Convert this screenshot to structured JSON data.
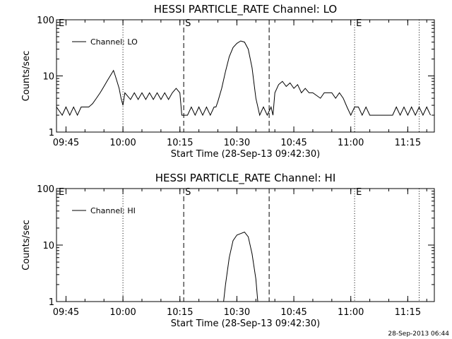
{
  "footer": {
    "stamp": "28-Sep-2013 06:44"
  },
  "chart_data": [
    {
      "type": "line",
      "title": "HESSI PARTICLE_RATE Channel: LO",
      "xlabel": "Start Time (28-Sep-13 09:42:30)",
      "ylabel": "Counts/sec",
      "yscale": "log",
      "ylim": [
        1,
        100
      ],
      "xlim": [
        "09:42:30",
        "11:22:00"
      ],
      "x_ticks": [
        "09:45",
        "10:00",
        "10:15",
        "10:30",
        "10:45",
        "11:00",
        "11:15"
      ],
      "y_ticks": [
        "1",
        "10",
        "100"
      ],
      "legend": "top-left",
      "series": [
        {
          "name": "Channel: LO",
          "points": [
            [
              "09:42:30",
              2.8
            ],
            [
              "09:44:00",
              2.0
            ],
            [
              "09:45:00",
              2.8
            ],
            [
              "09:46:00",
              2.0
            ],
            [
              "09:47:00",
              2.8
            ],
            [
              "09:48:00",
              2.0
            ],
            [
              "09:49:00",
              2.8
            ],
            [
              "09:50:00",
              2.8
            ],
            [
              "09:51:00",
              2.8
            ],
            [
              "09:52:00",
              3.2
            ],
            [
              "09:53:00",
              4.0
            ],
            [
              "09:54:00",
              5.0
            ],
            [
              "09:55:00",
              6.5
            ],
            [
              "09:56:00",
              8.5
            ],
            [
              "09:57:00",
              11.0
            ],
            [
              "09:57:30",
              12.5
            ],
            [
              "09:58:00",
              10.0
            ],
            [
              "09:59:00",
              6.0
            ],
            [
              "09:59:30",
              4.0
            ],
            [
              "10:00:00",
              3.0
            ],
            [
              "10:00:30",
              5.0
            ],
            [
              "10:02:00",
              3.8
            ],
            [
              "10:03:00",
              5.0
            ],
            [
              "10:04:00",
              3.8
            ],
            [
              "10:05:00",
              5.0
            ],
            [
              "10:06:00",
              3.8
            ],
            [
              "10:07:00",
              5.0
            ],
            [
              "10:08:00",
              3.8
            ],
            [
              "10:09:00",
              5.0
            ],
            [
              "10:10:00",
              3.8
            ],
            [
              "10:11:00",
              5.0
            ],
            [
              "10:12:00",
              3.8
            ],
            [
              "10:13:00",
              5.0
            ],
            [
              "10:14:00",
              6.0
            ],
            [
              "10:15:00",
              5.0
            ],
            [
              "10:15:30",
              2.0
            ],
            [
              "10:17:00",
              2.0
            ],
            [
              "10:18:00",
              2.8
            ],
            [
              "10:19:00",
              2.0
            ],
            [
              "10:20:00",
              2.8
            ],
            [
              "10:21:00",
              2.0
            ],
            [
              "10:22:00",
              2.8
            ],
            [
              "10:23:00",
              2.0
            ],
            [
              "10:24:00",
              2.8
            ],
            [
              "10:24:30",
              2.8
            ],
            [
              "10:25:00",
              3.5
            ],
            [
              "10:26:00",
              6.0
            ],
            [
              "10:27:00",
              12.0
            ],
            [
              "10:28:00",
              22.0
            ],
            [
              "10:29:00",
              32.0
            ],
            [
              "10:30:00",
              38.0
            ],
            [
              "10:31:00",
              42.0
            ],
            [
              "10:32:00",
              40.0
            ],
            [
              "10:33:00",
              30.0
            ],
            [
              "10:34:00",
              14.0
            ],
            [
              "10:35:00",
              4.0
            ],
            [
              "10:36:00",
              2.0
            ],
            [
              "10:37:00",
              2.8
            ],
            [
              "10:38:00",
              2.0
            ],
            [
              "10:39:00",
              2.8
            ],
            [
              "10:39:30",
              2.0
            ],
            [
              "10:40:00",
              5.0
            ],
            [
              "10:41:00",
              7.0
            ],
            [
              "10:42:00",
              8.0
            ],
            [
              "10:43:00",
              6.5
            ],
            [
              "10:44:00",
              7.5
            ],
            [
              "10:45:00",
              6.0
            ],
            [
              "10:46:00",
              7.0
            ],
            [
              "10:47:00",
              5.0
            ],
            [
              "10:48:00",
              6.0
            ],
            [
              "10:49:00",
              5.0
            ],
            [
              "10:50:00",
              5.0
            ],
            [
              "10:52:00",
              4.0
            ],
            [
              "10:53:00",
              5.0
            ],
            [
              "10:55:00",
              5.0
            ],
            [
              "10:56:00",
              4.0
            ],
            [
              "10:57:00",
              5.0
            ],
            [
              "10:58:00",
              4.0
            ],
            [
              "10:59:00",
              2.8
            ],
            [
              "11:00:00",
              2.0
            ],
            [
              "11:01:00",
              2.8
            ],
            [
              "11:02:00",
              2.8
            ],
            [
              "11:03:00",
              2.0
            ],
            [
              "11:04:00",
              2.8
            ],
            [
              "11:05:00",
              2.0
            ],
            [
              "11:07:00",
              2.0
            ],
            [
              "11:09:00",
              2.0
            ],
            [
              "11:11:00",
              2.0
            ],
            [
              "11:12:00",
              2.8
            ],
            [
              "11:13:00",
              2.0
            ],
            [
              "11:14:00",
              2.8
            ],
            [
              "11:15:00",
              2.0
            ],
            [
              "11:16:00",
              2.8
            ],
            [
              "11:17:00",
              2.0
            ],
            [
              "11:18:00",
              2.8
            ],
            [
              "11:19:00",
              2.0
            ],
            [
              "11:20:00",
              2.8
            ],
            [
              "11:21:00",
              2.0
            ]
          ]
        }
      ],
      "markers": [
        {
          "time": "09:42:30",
          "label": "E",
          "style": "dotted"
        },
        {
          "time": "10:00:00",
          "label": "",
          "style": "dotted"
        },
        {
          "time": "10:16:00",
          "label": "S",
          "style": "dashed"
        },
        {
          "time": "10:38:30",
          "label": "",
          "style": "dashed"
        },
        {
          "time": "11:01:00",
          "label": "E",
          "style": "dotted"
        },
        {
          "time": "11:18:00",
          "label": "",
          "style": "dotted"
        }
      ]
    },
    {
      "type": "line",
      "title": "HESSI PARTICLE_RATE Channel: HI",
      "xlabel": "Start Time (28-Sep-13 09:42:30)",
      "ylabel": "Counts/sec",
      "yscale": "log",
      "ylim": [
        1,
        100
      ],
      "xlim": [
        "09:42:30",
        "11:22:00"
      ],
      "x_ticks": [
        "09:45",
        "10:00",
        "10:15",
        "10:30",
        "10:45",
        "11:00",
        "11:15"
      ],
      "y_ticks": [
        "1",
        "10",
        "100"
      ],
      "legend": "top-left",
      "series": [
        {
          "name": "Channel: HI",
          "points": [
            [
              "10:26:30",
              1.0
            ],
            [
              "10:27:00",
              2.0
            ],
            [
              "10:28:00",
              6.0
            ],
            [
              "10:29:00",
              12.0
            ],
            [
              "10:30:00",
              15.0
            ],
            [
              "10:31:00",
              16.0
            ],
            [
              "10:32:00",
              17.0
            ],
            [
              "10:33:00",
              14.0
            ],
            [
              "10:34:00",
              7.0
            ],
            [
              "10:35:00",
              2.5
            ],
            [
              "10:35:30",
              1.0
            ]
          ]
        }
      ],
      "markers": [
        {
          "time": "09:42:30",
          "label": "E",
          "style": "dotted"
        },
        {
          "time": "10:00:00",
          "label": "",
          "style": "dotted"
        },
        {
          "time": "10:16:00",
          "label": "S",
          "style": "dashed"
        },
        {
          "time": "10:38:30",
          "label": "",
          "style": "dashed"
        },
        {
          "time": "11:01:00",
          "label": "E",
          "style": "dotted"
        },
        {
          "time": "11:18:00",
          "label": "",
          "style": "dotted"
        }
      ]
    }
  ]
}
